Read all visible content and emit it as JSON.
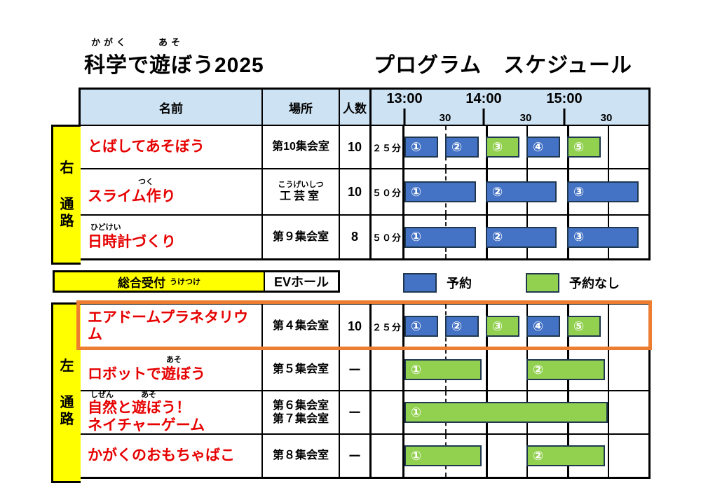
{
  "title": {
    "main": "科学で遊ぼう2025",
    "furigana_kagaku": "かがく",
    "furigana_aso": "あそ",
    "right": "プログラム　スケジュール"
  },
  "header": {
    "name": "名前",
    "place": "場所",
    "people": "人数",
    "hours": [
      "13:00",
      "14:00",
      "15:00"
    ],
    "half_label": "30"
  },
  "aisles": {
    "top": [
      "右",
      "通",
      "路"
    ],
    "bottom": [
      "左",
      "通",
      "路"
    ]
  },
  "reception": {
    "label": "総合受付",
    "label_furigana": "うけつけ",
    "place": "EVホール"
  },
  "legend": {
    "reserved_label": "予約",
    "open_label": "予約なし",
    "reserved_color": "#4472c4",
    "open_color": "#92d050"
  },
  "timeline": {
    "start": "13:00",
    "end": "16:00",
    "total_minutes": 180
  },
  "rows": [
    {
      "name": "とばしてあそぼう",
      "name_furigana": "",
      "place": "第10集会室",
      "place_furigana": "",
      "people": "10",
      "duration": "２５分",
      "bars": [
        {
          "label": "①",
          "type": "reserved",
          "start": 0,
          "end": 25
        },
        {
          "label": "②",
          "type": "reserved",
          "start": 30,
          "end": 55
        },
        {
          "label": "③",
          "type": "open",
          "start": 60,
          "end": 85
        },
        {
          "label": "④",
          "type": "reserved",
          "start": 90,
          "end": 115
        },
        {
          "label": "⑤",
          "type": "open",
          "start": 120,
          "end": 145
        }
      ]
    },
    {
      "name": "スライム作り",
      "name_furigana": "つく",
      "place": "工芸室",
      "place_furigana": "こうげいしつ",
      "people": "10",
      "duration": "５０分",
      "bars": [
        {
          "label": "①",
          "type": "reserved",
          "start": 0,
          "end": 53
        },
        {
          "label": "②",
          "type": "reserved",
          "start": 60,
          "end": 112
        },
        {
          "label": "③",
          "type": "reserved",
          "start": 120,
          "end": 173
        }
      ]
    },
    {
      "name": "日時計づくり",
      "name_furigana": "ひどけい",
      "place": "第９集会室",
      "place_furigana": "",
      "people": "8",
      "duration": "５０分",
      "bars": [
        {
          "label": "①",
          "type": "reserved",
          "start": 0,
          "end": 53
        },
        {
          "label": "②",
          "type": "reserved",
          "start": 60,
          "end": 112
        },
        {
          "label": "③",
          "type": "reserved",
          "start": 120,
          "end": 173
        }
      ]
    },
    {
      "name": "エアドームプラネタリウム",
      "name_furigana": "",
      "place": "第４集会室",
      "place_furigana": "",
      "people": "10",
      "duration": "２５分",
      "bars": [
        {
          "label": "①",
          "type": "reserved",
          "start": 0,
          "end": 25
        },
        {
          "label": "②",
          "type": "reserved",
          "start": 30,
          "end": 55
        },
        {
          "label": "③",
          "type": "open",
          "start": 60,
          "end": 85
        },
        {
          "label": "④",
          "type": "reserved",
          "start": 90,
          "end": 115
        },
        {
          "label": "⑤",
          "type": "open",
          "start": 120,
          "end": 145
        }
      ]
    },
    {
      "name": "ロボットで遊ぼう",
      "name_furigana": "あそ",
      "place": "第５集会室",
      "place_furigana": "",
      "people": "ー",
      "duration": "",
      "bars": [
        {
          "label": "①",
          "type": "open",
          "start": 0,
          "end": 57
        },
        {
          "label": "②",
          "type": "open",
          "start": 90,
          "end": 148
        }
      ]
    },
    {
      "name": "自然と遊ぼう！",
      "name_line2": "ネイチャーゲーム",
      "name_furigana": "しぜん",
      "name_furigana2": "あそ",
      "place": "第６集会室",
      "place_line2": "第７集会室",
      "place_furigana": "",
      "people": "ー",
      "duration": "",
      "bars": [
        {
          "label": "①",
          "type": "open",
          "start": 0,
          "end": 150
        }
      ]
    },
    {
      "name": "かがくのおもちゃばこ",
      "name_furigana": "",
      "place": "第８集会室",
      "place_furigana": "",
      "people": "ー",
      "duration": "",
      "bars": [
        {
          "label": "①",
          "type": "open",
          "start": 0,
          "end": 57
        },
        {
          "label": "②",
          "type": "open",
          "start": 90,
          "end": 148
        }
      ]
    }
  ]
}
